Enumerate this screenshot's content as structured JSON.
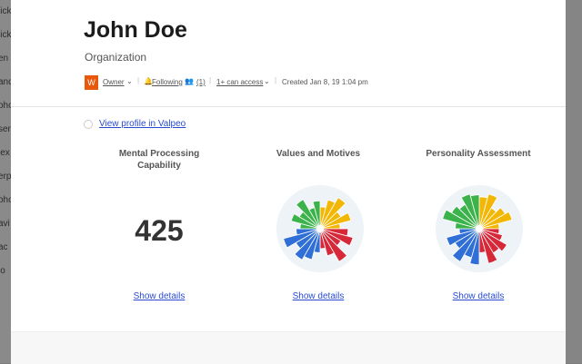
{
  "sidebar": [
    "lick",
    "lick",
    "en",
    "and",
    "oho",
    "sen",
    "lex",
    "erp",
    "oho",
    "avi",
    "ac",
    "lo"
  ],
  "header": {
    "title": "John Doe",
    "subtitle": "Organization",
    "avatar": "W",
    "role": "Owner",
    "following": "Following",
    "members": "(1)",
    "access": "1+ can access",
    "created": "Created Jan 8, 19 1:04 pm"
  },
  "link": "View profile in Valpeo",
  "cards": [
    {
      "title": "Mental Processing Capability",
      "score": 425,
      "action": "Show details"
    },
    {
      "title": "Values and Motives",
      "action": "Show details"
    },
    {
      "title": "Personality Assessment",
      "action": "Show details"
    }
  ]
}
